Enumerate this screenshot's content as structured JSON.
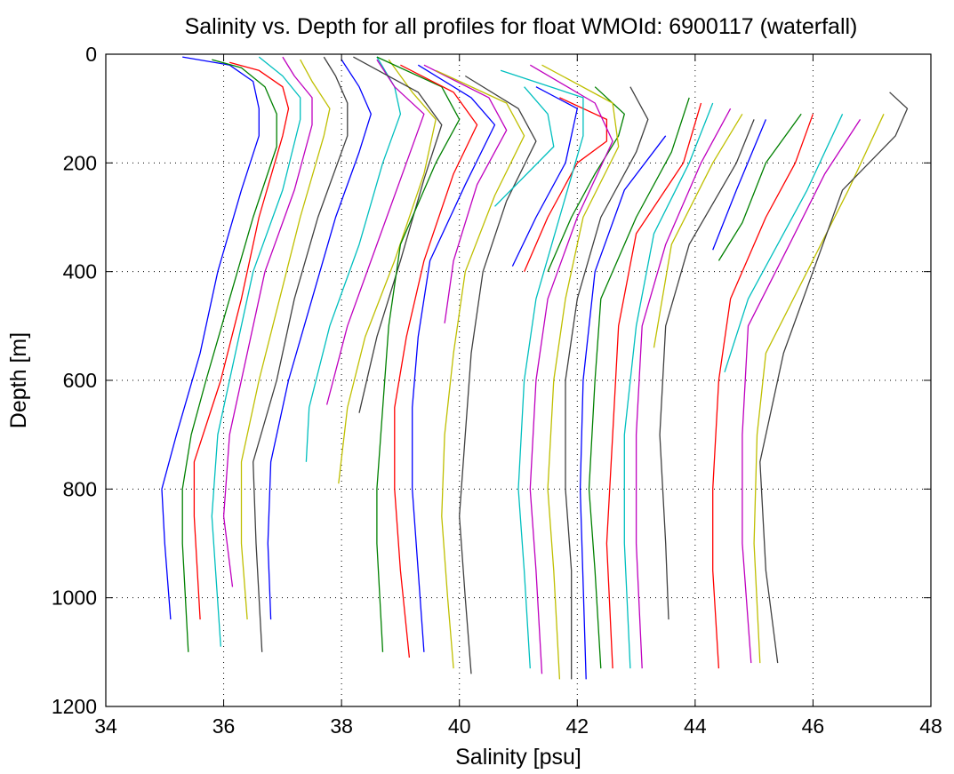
{
  "chart_data": {
    "type": "line",
    "title": "Salinity vs. Depth for all profiles for float WMOId: 6900117 (waterfall)",
    "xlabel": "Salinity [psu]",
    "ylabel": "Depth [m]",
    "xlim": [
      34,
      48
    ],
    "ylim": [
      0,
      1200
    ],
    "y_reversed": true,
    "grid": true,
    "x_ticks": [
      34,
      36,
      38,
      40,
      42,
      44,
      46,
      48
    ],
    "y_ticks": [
      0,
      200,
      400,
      600,
      800,
      1000,
      1200
    ],
    "x_tick_labels": [
      "34",
      "36",
      "38",
      "40",
      "42",
      "44",
      "46",
      "48"
    ],
    "y_tick_labels": [
      "0",
      "200",
      "400",
      "600",
      "800",
      "1000",
      "1200"
    ],
    "color_cycle": [
      "#0000ff",
      "#008000",
      "#ff0000",
      "#00bfbf",
      "#bf00bf",
      "#bfbf00",
      "#404040"
    ],
    "series": [
      {
        "color": "#0000ff",
        "depth": [
          5,
          20,
          50,
          100,
          150,
          250,
          400,
          550,
          700,
          800,
          900,
          1040
        ],
        "salinity": [
          35.3,
          36.1,
          36.5,
          36.6,
          36.6,
          36.3,
          35.9,
          35.6,
          35.2,
          34.95,
          35.0,
          35.1
        ]
      },
      {
        "color": "#008000",
        "depth": [
          10,
          25,
          60,
          110,
          170,
          300,
          450,
          600,
          700,
          800,
          900,
          1100
        ],
        "salinity": [
          35.8,
          36.3,
          36.7,
          36.9,
          36.9,
          36.5,
          36.1,
          35.7,
          35.45,
          35.3,
          35.3,
          35.4
        ]
      },
      {
        "color": "#ff0000",
        "depth": [
          15,
          30,
          60,
          100,
          150,
          300,
          450,
          600,
          750,
          850,
          1040
        ],
        "salinity": [
          36.1,
          36.6,
          37.0,
          37.1,
          37.0,
          36.6,
          36.3,
          35.95,
          35.5,
          35.5,
          35.6
        ]
      },
      {
        "color": "#00bfbf",
        "depth": [
          5,
          40,
          80,
          120,
          250,
          400,
          550,
          700,
          850,
          1090
        ],
        "salinity": [
          36.6,
          37.0,
          37.3,
          37.3,
          37.0,
          36.5,
          36.2,
          35.9,
          35.8,
          35.95
        ]
      },
      {
        "color": "#bf00bf",
        "depth": [
          5,
          40,
          80,
          130,
          250,
          400,
          550,
          700,
          850,
          980
        ],
        "salinity": [
          37.0,
          37.2,
          37.5,
          37.5,
          37.2,
          36.7,
          36.4,
          36.1,
          36.0,
          36.15
        ]
      },
      {
        "color": "#bfbf00",
        "depth": [
          10,
          50,
          100,
          150,
          300,
          450,
          600,
          750,
          900,
          1040
        ],
        "salinity": [
          37.3,
          37.5,
          37.8,
          37.7,
          37.3,
          36.95,
          36.6,
          36.3,
          36.3,
          36.4
        ]
      },
      {
        "color": "#404040",
        "depth": [
          5,
          40,
          90,
          150,
          300,
          450,
          600,
          750,
          900,
          1100
        ],
        "salinity": [
          37.7,
          37.9,
          38.1,
          38.1,
          37.6,
          37.2,
          36.9,
          36.5,
          36.55,
          36.65
        ]
      },
      {
        "color": "#0000ff",
        "depth": [
          10,
          60,
          110,
          180,
          300,
          450,
          600,
          750,
          900,
          1040
        ],
        "salinity": [
          38.0,
          38.3,
          38.5,
          38.3,
          37.9,
          37.5,
          37.1,
          36.8,
          36.75,
          36.8
        ]
      },
      {
        "color": "#00bfbf",
        "depth": [
          5,
          60,
          110,
          200,
          350,
          500,
          650,
          750
        ],
        "salinity": [
          38.6,
          38.9,
          39.0,
          38.7,
          38.3,
          37.8,
          37.45,
          37.4
        ]
      },
      {
        "color": "#bf00bf",
        "depth": [
          10,
          60,
          110,
          200,
          350,
          500,
          645
        ],
        "salinity": [
          38.6,
          38.9,
          39.4,
          39.1,
          38.6,
          38.1,
          37.75
        ]
      },
      {
        "color": "#bfbf00",
        "depth": [
          10,
          70,
          120,
          220,
          380,
          520,
          650,
          790
        ],
        "salinity": [
          38.8,
          39.2,
          39.6,
          39.4,
          38.9,
          38.4,
          38.1,
          37.95
        ]
      },
      {
        "color": "#404040",
        "depth": [
          5,
          70,
          130,
          230,
          380,
          520,
          660
        ],
        "salinity": [
          38.2,
          39.3,
          39.7,
          39.4,
          39.0,
          38.6,
          38.3
        ]
      },
      {
        "color": "#008000",
        "depth": [
          5,
          60,
          120,
          200,
          350,
          500,
          650,
          800,
          900,
          1100
        ],
        "salinity": [
          38.6,
          39.7,
          40.0,
          39.6,
          39.0,
          38.8,
          38.7,
          38.6,
          38.6,
          38.7
        ]
      },
      {
        "color": "#ff0000",
        "depth": [
          20,
          70,
          130,
          220,
          380,
          520,
          650,
          800,
          950,
          1110
        ],
        "salinity": [
          39.0,
          39.9,
          40.3,
          39.9,
          39.4,
          39.1,
          38.9,
          38.9,
          39.0,
          39.15
        ]
      },
      {
        "color": "#0000ff",
        "depth": [
          20,
          80,
          130,
          240,
          380,
          520,
          650,
          800,
          950,
          1100
        ],
        "salinity": [
          39.3,
          40.2,
          40.6,
          40.1,
          39.5,
          39.3,
          39.2,
          39.2,
          39.3,
          39.4
        ]
      },
      {
        "color": "#bf00bf",
        "depth": [
          20,
          80,
          140,
          240,
          380,
          495
        ],
        "salinity": [
          39.4,
          40.5,
          40.8,
          40.3,
          39.9,
          39.75
        ]
      },
      {
        "color": "#bfbf00",
        "depth": [
          30,
          90,
          150,
          260,
          400,
          550,
          700,
          850,
          1000,
          1130
        ],
        "salinity": [
          39.6,
          40.8,
          41.1,
          40.6,
          40.1,
          39.9,
          39.75,
          39.7,
          39.8,
          39.9
        ]
      },
      {
        "color": "#404040",
        "depth": [
          40,
          100,
          160,
          270,
          400,
          550,
          700,
          850,
          1000,
          1140
        ],
        "salinity": [
          40.1,
          41.0,
          41.3,
          40.8,
          40.4,
          40.2,
          40.1,
          40.0,
          40.1,
          40.2
        ]
      },
      {
        "color": "#00bfbf",
        "depth": [
          60,
          110,
          170,
          280
        ],
        "salinity": [
          41.1,
          41.5,
          41.6,
          40.6
        ]
      },
      {
        "color": "#0000ff",
        "depth": [
          60,
          100,
          200,
          300,
          390
        ],
        "salinity": [
          41.3,
          42.0,
          41.8,
          41.3,
          40.9
        ]
      },
      {
        "color": "#ff0000",
        "depth": [
          80,
          120,
          160,
          200,
          300,
          400
        ],
        "salinity": [
          41.7,
          42.5,
          42.5,
          42.0,
          41.5,
          41.1
        ]
      },
      {
        "color": "#008000",
        "depth": [
          60,
          110,
          150,
          220,
          300,
          400
        ],
        "salinity": [
          42.3,
          42.8,
          42.7,
          42.3,
          41.9,
          41.5
        ]
      },
      {
        "color": "#00bfbf",
        "depth": [
          30,
          80,
          150,
          300,
          450,
          600,
          800,
          950,
          1130
        ],
        "salinity": [
          40.7,
          42.1,
          42.1,
          41.7,
          41.3,
          41.1,
          41.0,
          41.1,
          41.2
        ]
      },
      {
        "color": "#bf00bf",
        "depth": [
          20,
          90,
          160,
          300,
          450,
          600,
          800,
          950,
          1140
        ],
        "salinity": [
          41.2,
          42.3,
          42.6,
          42.0,
          41.5,
          41.3,
          41.2,
          41.3,
          41.4
        ]
      },
      {
        "color": "#bfbf00",
        "depth": [
          20,
          90,
          170,
          300,
          450,
          600,
          800,
          950,
          1150
        ],
        "salinity": [
          41.4,
          42.6,
          42.7,
          42.1,
          41.8,
          41.6,
          41.5,
          41.6,
          41.7
        ]
      },
      {
        "color": "#404040",
        "depth": [
          60,
          120,
          180,
          300,
          450,
          600,
          800,
          950,
          1150
        ],
        "salinity": [
          42.9,
          43.2,
          43.0,
          42.4,
          42.0,
          41.8,
          41.8,
          41.9,
          41.9
        ]
      },
      {
        "color": "#0000ff",
        "depth": [
          150,
          250,
          400,
          600,
          800,
          1150
        ],
        "salinity": [
          43.5,
          42.8,
          42.3,
          42.1,
          42.05,
          42.15
        ]
      },
      {
        "color": "#008000",
        "depth": [
          80,
          180,
          300,
          450,
          600,
          800,
          950,
          1130
        ],
        "salinity": [
          43.9,
          43.6,
          43.0,
          42.4,
          42.3,
          42.2,
          42.3,
          42.4
        ]
      },
      {
        "color": "#ff0000",
        "depth": [
          90,
          200,
          330,
          500,
          700,
          900,
          1130
        ],
        "salinity": [
          44.1,
          43.8,
          43.0,
          42.7,
          42.6,
          42.5,
          42.6
        ]
      },
      {
        "color": "#00bfbf",
        "depth": [
          90,
          200,
          330,
          500,
          700,
          900,
          1130
        ],
        "salinity": [
          44.3,
          43.9,
          43.3,
          43.0,
          42.8,
          42.8,
          42.9
        ]
      },
      {
        "color": "#bf00bf",
        "depth": [
          100,
          200,
          350,
          500,
          700,
          900,
          1130
        ],
        "salinity": [
          44.6,
          44.1,
          43.5,
          43.1,
          43.0,
          43.0,
          43.1
        ]
      },
      {
        "color": "#bfbf00",
        "depth": [
          110,
          200,
          350,
          540
        ],
        "salinity": [
          44.8,
          44.3,
          43.6,
          43.3
        ]
      },
      {
        "color": "#404040",
        "depth": [
          120,
          200,
          350,
          500,
          700,
          900,
          1040
        ],
        "salinity": [
          45.0,
          44.7,
          43.9,
          43.5,
          43.4,
          43.5,
          43.55
        ]
      },
      {
        "color": "#0000ff",
        "depth": [
          120,
          250,
          360
        ],
        "salinity": [
          45.2,
          44.7,
          44.3
        ]
      },
      {
        "color": "#008000",
        "depth": [
          110,
          200,
          310,
          380
        ],
        "salinity": [
          45.8,
          45.2,
          44.8,
          44.4
        ]
      },
      {
        "color": "#ff0000",
        "depth": [
          110,
          200,
          300,
          450,
          600,
          800,
          950,
          1130
        ],
        "salinity": [
          46.0,
          45.7,
          45.2,
          44.6,
          44.4,
          44.3,
          44.3,
          44.4
        ]
      },
      {
        "color": "#00bfbf",
        "depth": [
          110,
          250,
          450,
          585
        ],
        "salinity": [
          46.5,
          45.9,
          44.9,
          44.5
        ]
      },
      {
        "color": "#bf00bf",
        "depth": [
          120,
          220,
          350,
          500,
          700,
          900,
          1120
        ],
        "salinity": [
          46.8,
          46.2,
          45.6,
          44.9,
          44.8,
          44.8,
          44.95
        ]
      },
      {
        "color": "#bfbf00",
        "depth": [
          110,
          250,
          400,
          550,
          700,
          900,
          1120
        ],
        "salinity": [
          47.2,
          46.6,
          45.9,
          45.2,
          45.05,
          45.0,
          45.1
        ]
      },
      {
        "color": "#404040",
        "depth": [
          70,
          100,
          150,
          250,
          400,
          550,
          750,
          950,
          1120
        ],
        "salinity": [
          47.3,
          47.6,
          47.4,
          46.5,
          46.0,
          45.5,
          45.1,
          45.2,
          45.4
        ]
      }
    ]
  }
}
